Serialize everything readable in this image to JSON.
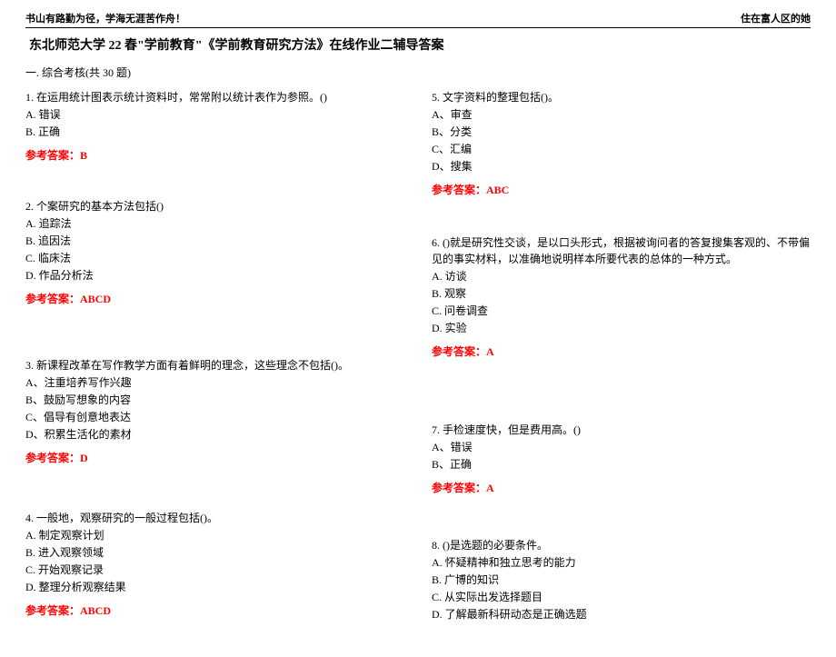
{
  "header": {
    "left": "书山有路勤为径，学海无涯苦作舟！",
    "right": "住在富人区的她"
  },
  "title": "东北师范大学 22 春\"学前教育\"《学前教育研究方法》在线作业二辅导答案",
  "section": "一. 综合考核(共 30 题)",
  "col1": {
    "q1": {
      "text": "1. 在运用统计图表示统计资料时，常常附以统计表作为参照。()",
      "a": "A. 错误",
      "b": "B. 正确",
      "answer": "参考答案：B"
    },
    "q2": {
      "text": "2. 个案研究的基本方法包括()",
      "a": "A. 追踪法",
      "b": "B. 追因法",
      "c": "C. 临床法",
      "d": "D. 作品分析法",
      "answer": "参考答案：ABCD"
    },
    "q3": {
      "text": "3. 新课程改革在写作教学方面有着鲜明的理念，这些理念不包括()。",
      "a": "A、注重培养写作兴趣",
      "b": "B、鼓励写想象的内容",
      "c": "C、倡导有创意地表达",
      "d": "D、积累生活化的素材",
      "answer": "参考答案：D"
    },
    "q4": {
      "text": "4. 一般地，观察研究的一般过程包括()。",
      "a": "A. 制定观察计划",
      "b": "B. 进入观察领域",
      "c": "C. 开始观察记录",
      "d": "D. 整理分析观察结果",
      "answer": "参考答案：ABCD"
    }
  },
  "col2": {
    "q5": {
      "text": "5. 文字资料的整理包括()。",
      "a": "A、审查",
      "b": "B、分类",
      "c": "C、汇编",
      "d": "D、搜集",
      "answer": "参考答案：ABC"
    },
    "q6": {
      "text": "6. ()就是研究性交谈，是以口头形式，根据被询问者的答复搜集客观的、不带偏见的事实材料，以准确地说明样本所要代表的总体的一种方式。",
      "a": "A. 访谈",
      "b": "B. 观察",
      "c": "C. 问卷调查",
      "d": "D. 实验",
      "answer": "参考答案：A"
    },
    "q7": {
      "text": "7. 手检速度快，但是费用高。()",
      "a": "A、错误",
      "b": "B、正确",
      "answer": "参考答案：A"
    },
    "q8": {
      "text": "8. ()是选题的必要条件。",
      "a": "A. 怀疑精神和独立思考的能力",
      "b": "B. 广博的知识",
      "c": "C. 从实际出发选择题目",
      "d": "D. 了解最新科研动态是正确选题"
    }
  }
}
